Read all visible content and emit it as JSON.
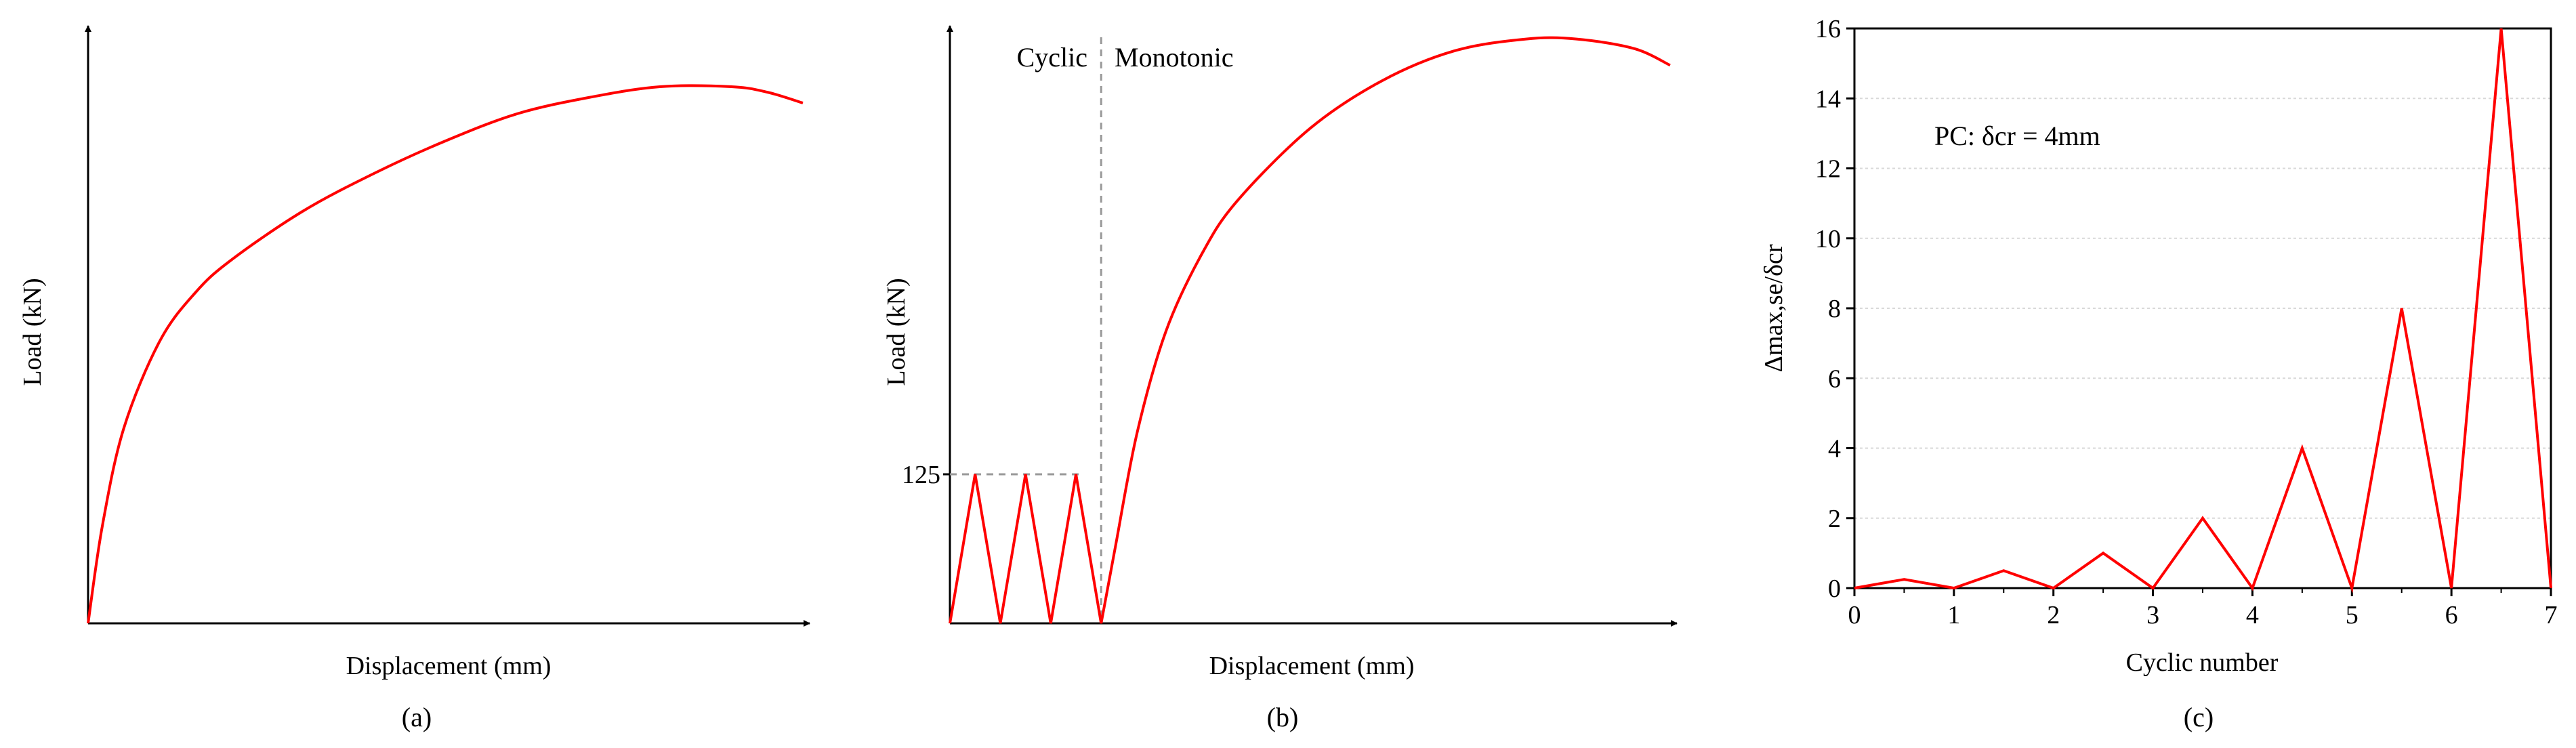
{
  "chart_data": [
    {
      "type": "line",
      "title": "",
      "xlabel": "Displacement (mm)",
      "ylabel": "Load (kN)",
      "caption": "(a)",
      "series": [
        {
          "x": [
            0,
            0.2,
            0.5,
            1,
            1.5,
            2,
            3,
            4,
            5,
            6,
            7,
            8,
            9,
            9.5,
            10
          ],
          "y": [
            0,
            0.18,
            0.36,
            0.52,
            0.61,
            0.67,
            0.76,
            0.83,
            0.89,
            0.94,
            0.97,
            0.99,
            0.99,
            0.98,
            0.96
          ]
        }
      ],
      "xlim": [
        0,
        10
      ],
      "ylim": [
        0,
        1.1
      ]
    },
    {
      "type": "line",
      "title": "",
      "xlabel": "Displacement (mm)",
      "ylabel": "Load (kN)",
      "caption": "(b)",
      "region_labels": [
        "Cyclic",
        "Monotonic"
      ],
      "y_ticks": [
        125
      ],
      "series": [
        {
          "x": [
            0,
            0.35,
            0.7,
            1.05,
            1.4,
            1.75,
            2.1,
            2.3,
            2.6,
            3,
            3.5,
            4,
            5,
            6,
            7,
            8,
            8.7,
            9.5,
            10
          ],
          "y": [
            0,
            125,
            0,
            125,
            0,
            125,
            0,
            65,
            160,
            245,
            310,
            355,
            415,
            455,
            480,
            490,
            490,
            482,
            468
          ]
        }
      ],
      "xlim": [
        0,
        10
      ],
      "ylim": [
        0,
        500
      ]
    },
    {
      "type": "line",
      "title": "",
      "xlabel": "Cyclic number",
      "ylabel": "Δmax,se/δcr",
      "caption": "(c)",
      "annotation": "PC: δcr = 4mm",
      "xlim": [
        0,
        7
      ],
      "ylim": [
        0,
        16
      ],
      "x_ticks": [
        0,
        1,
        2,
        3,
        4,
        5,
        6,
        7
      ],
      "y_ticks": [
        0,
        2,
        4,
        6,
        8,
        10,
        12,
        14,
        16
      ],
      "grid": true,
      "series": [
        {
          "x": [
            0,
            0.5,
            1,
            1.5,
            2,
            2.5,
            3,
            3.5,
            4,
            4.5,
            5,
            5.5,
            6,
            6.5,
            7
          ],
          "y": [
            0,
            0.25,
            0,
            0.5,
            0,
            1,
            0,
            2,
            0,
            4,
            0,
            8,
            0,
            16,
            0
          ]
        }
      ]
    }
  ],
  "colors": {
    "series": "#ff0000",
    "axis": "#000000",
    "grid": "#d9d9d9",
    "guide": "#999999"
  }
}
